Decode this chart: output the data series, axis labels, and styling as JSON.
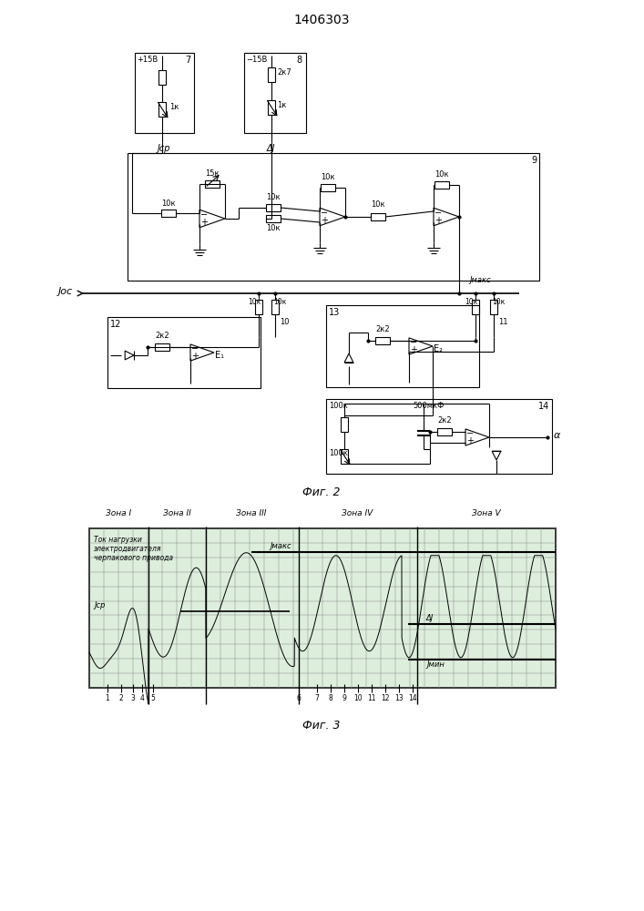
{
  "title": "1406303",
  "fig2_label": "Фиг. 2",
  "fig3_label": "Фиг. 3",
  "background_color": "#ffffff",
  "line_color": "#000000",
  "zones": [
    "Зона I",
    "Зона II",
    "Зона III",
    "Зона IV",
    "Зона V"
  ],
  "chart_text_line1": "Ток нагрузки",
  "chart_text_line2": "электродвигателя",
  "chart_text_line3": "черпакового привода"
}
